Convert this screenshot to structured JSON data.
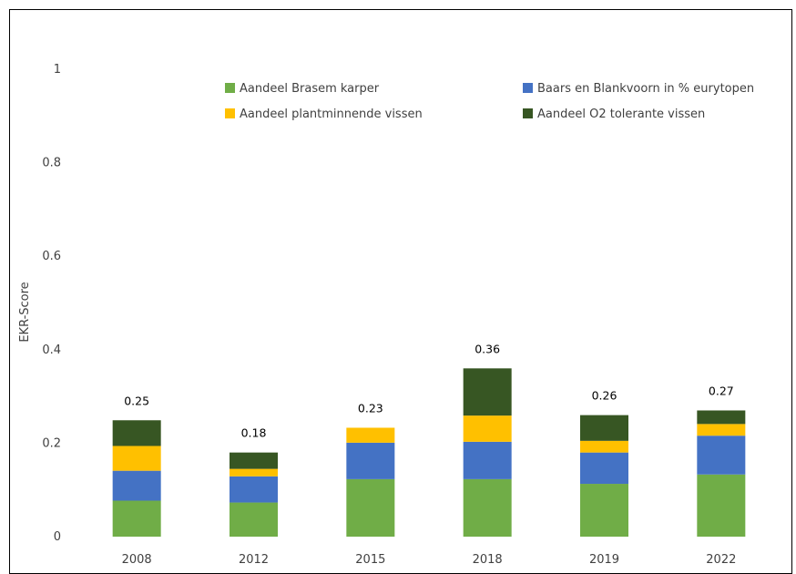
{
  "chart_data": {
    "type": "bar",
    "stacked": true,
    "title": "",
    "xlabel": "",
    "ylabel": "EKR-Score",
    "ylim": [
      0,
      1
    ],
    "yticks": [
      "0",
      "0.2",
      "0.4",
      "0.6",
      "0.8",
      "1"
    ],
    "categories": [
      "2008",
      "2012",
      "2015",
      "2018",
      "2019",
      "2022"
    ],
    "series": [
      {
        "name": "Aandeel Brasem karper",
        "color": "#70AD47",
        "values": [
          0.077,
          0.073,
          0.123,
          0.123,
          0.113,
          0.133
        ]
      },
      {
        "name": "Baars en Blankvoorn in % eurytopen",
        "color": "#4472C4",
        "values": [
          0.064,
          0.056,
          0.078,
          0.08,
          0.067,
          0.083
        ]
      },
      {
        "name": "Aandeel plantminnende vissen",
        "color": "#FFC000",
        "values": [
          0.053,
          0.016,
          0.032,
          0.056,
          0.025,
          0.025
        ]
      },
      {
        "name": "Aandeel O2 tolerante vissen",
        "color": "#375623",
        "values": [
          0.055,
          0.035,
          0.0,
          0.101,
          0.055,
          0.029
        ]
      }
    ],
    "totals": [
      "0.25",
      "0.18",
      "0.23",
      "0.36",
      "0.26",
      "0.27"
    ],
    "legend_position": "top"
  }
}
